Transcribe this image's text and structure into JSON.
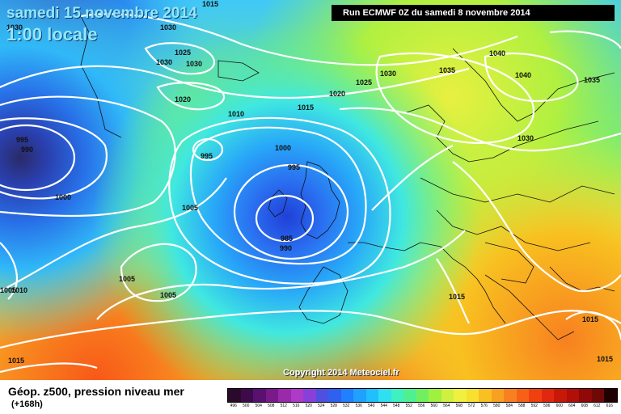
{
  "header": {
    "title_date": "samedi 15 novembre 2014",
    "title_time": "1:00 locale",
    "run_info": "Run ECMWF 0Z du samedi 8 novembre 2014"
  },
  "map": {
    "copyright": "Copyright 2014 Meteociel.fr",
    "isobar_labels": [
      "1015",
      "1030",
      "1030",
      "1025",
      "1030",
      "1030",
      "1020",
      "1030",
      "1035",
      "1040",
      "1040",
      "1035",
      "1025",
      "1020",
      "1015",
      "1010",
      "995",
      "990",
      "995",
      "1000",
      "995",
      "1000",
      "1005",
      "985",
      "990",
      "1030",
      "1005",
      "1005",
      "1010",
      "1005",
      "1015",
      "1015",
      "1015",
      "1015"
    ]
  },
  "legend": {
    "title": "Géop. z500, pression niveau mer",
    "step": "(+168h)",
    "scale_values": [
      "496",
      "500",
      "504",
      "508",
      "512",
      "516",
      "520",
      "524",
      "528",
      "532",
      "536",
      "540",
      "544",
      "548",
      "552",
      "556",
      "560",
      "564",
      "568",
      "572",
      "576",
      "580",
      "584",
      "588",
      "592",
      "596",
      "600",
      "604",
      "608",
      "612",
      "616"
    ],
    "scale_colors": [
      "#2a0a2a",
      "#3d0a4a",
      "#5a1070",
      "#7a1a8a",
      "#9a2aaa",
      "#b03ac8",
      "#8840d8",
      "#5050e0",
      "#3060f0",
      "#2080ff",
      "#20a0ff",
      "#20c0ff",
      "#30e0f0",
      "#40f0c0",
      "#50f090",
      "#70f060",
      "#a0f040",
      "#d0f040",
      "#f0f040",
      "#f8e030",
      "#f8c020",
      "#f8a020",
      "#f88020",
      "#f86018",
      "#f04010",
      "#e02810",
      "#c81808",
      "#b01008",
      "#900808",
      "#700808",
      "#200000"
    ]
  }
}
